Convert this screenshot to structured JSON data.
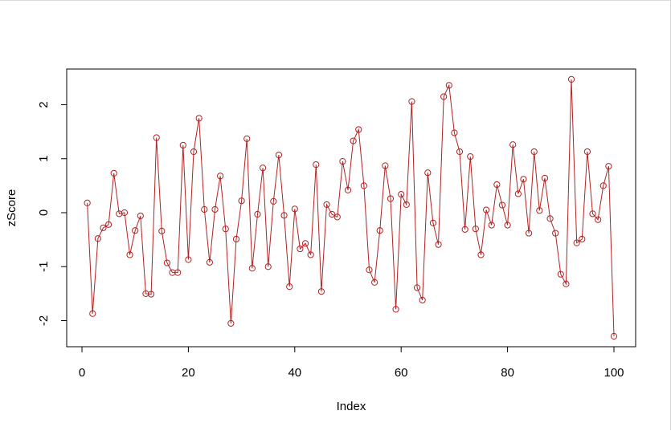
{
  "chart_data": {
    "type": "line",
    "xlabel": "Index",
    "ylabel": "zScore",
    "xlim": [
      0,
      100
    ],
    "ylim": [
      -2.3,
      2.5
    ],
    "x_ticks": [
      "0",
      "20",
      "40",
      "60",
      "80",
      "100"
    ],
    "y_ticks": [
      "-2",
      "-1",
      "0",
      "1",
      "2"
    ],
    "series_color": "#b22222",
    "grid": false,
    "legend": "none",
    "series": [
      {
        "x": [
          1,
          2,
          3,
          4,
          5,
          6,
          7,
          8,
          9,
          10,
          11,
          12,
          13,
          14,
          15,
          16,
          17,
          18,
          19,
          20,
          21,
          22,
          23,
          24,
          25,
          26,
          27,
          28,
          29,
          30,
          31,
          32,
          33,
          34,
          35,
          36,
          37,
          38,
          39,
          40,
          41,
          42,
          43,
          44,
          45,
          46,
          47,
          48,
          49,
          50,
          51,
          52,
          53,
          54,
          55,
          56,
          57,
          58,
          59,
          60,
          61,
          62,
          63,
          64,
          65,
          66,
          67,
          68,
          69,
          70,
          71,
          72,
          73,
          74,
          75,
          76,
          77,
          78,
          79,
          80,
          81,
          82,
          83,
          84,
          85,
          86,
          87,
          88,
          89,
          90,
          91,
          92,
          93,
          94,
          95,
          96,
          97,
          98,
          99,
          100
        ],
        "values": [
          0.18,
          -1.87,
          -0.48,
          -0.28,
          -0.22,
          0.73,
          -0.02,
          0.0,
          -0.78,
          -0.33,
          -0.06,
          -1.5,
          -1.51,
          1.39,
          -0.34,
          -0.93,
          -1.11,
          -1.11,
          1.25,
          -0.87,
          1.13,
          1.75,
          0.06,
          -0.92,
          0.06,
          0.68,
          -0.3,
          -2.05,
          -0.49,
          0.22,
          1.37,
          -1.03,
          -0.03,
          0.83,
          -1.0,
          0.21,
          1.07,
          -0.05,
          -1.37,
          0.07,
          -0.67,
          -0.57,
          -0.78,
          0.89,
          -1.46,
          0.15,
          -0.03,
          -0.08,
          0.95,
          0.42,
          1.33,
          1.54,
          0.5,
          -1.06,
          -1.29,
          -0.33,
          0.87,
          0.26,
          -1.79,
          0.34,
          0.15,
          2.06,
          -1.39,
          -1.62,
          0.74,
          -0.19,
          -0.59,
          2.15,
          2.36,
          1.48,
          1.13,
          -0.31,
          1.04,
          -0.3,
          -0.78,
          0.05,
          -0.23,
          0.52,
          0.14,
          -0.23,
          1.26,
          0.35,
          0.62,
          -0.38,
          1.13,
          0.04,
          0.64,
          -0.11,
          -0.38,
          -1.14,
          -1.32,
          2.47,
          -0.56,
          -0.49,
          1.13,
          -0.02,
          -0.13,
          0.5,
          0.86,
          -2.29
        ]
      }
    ]
  }
}
